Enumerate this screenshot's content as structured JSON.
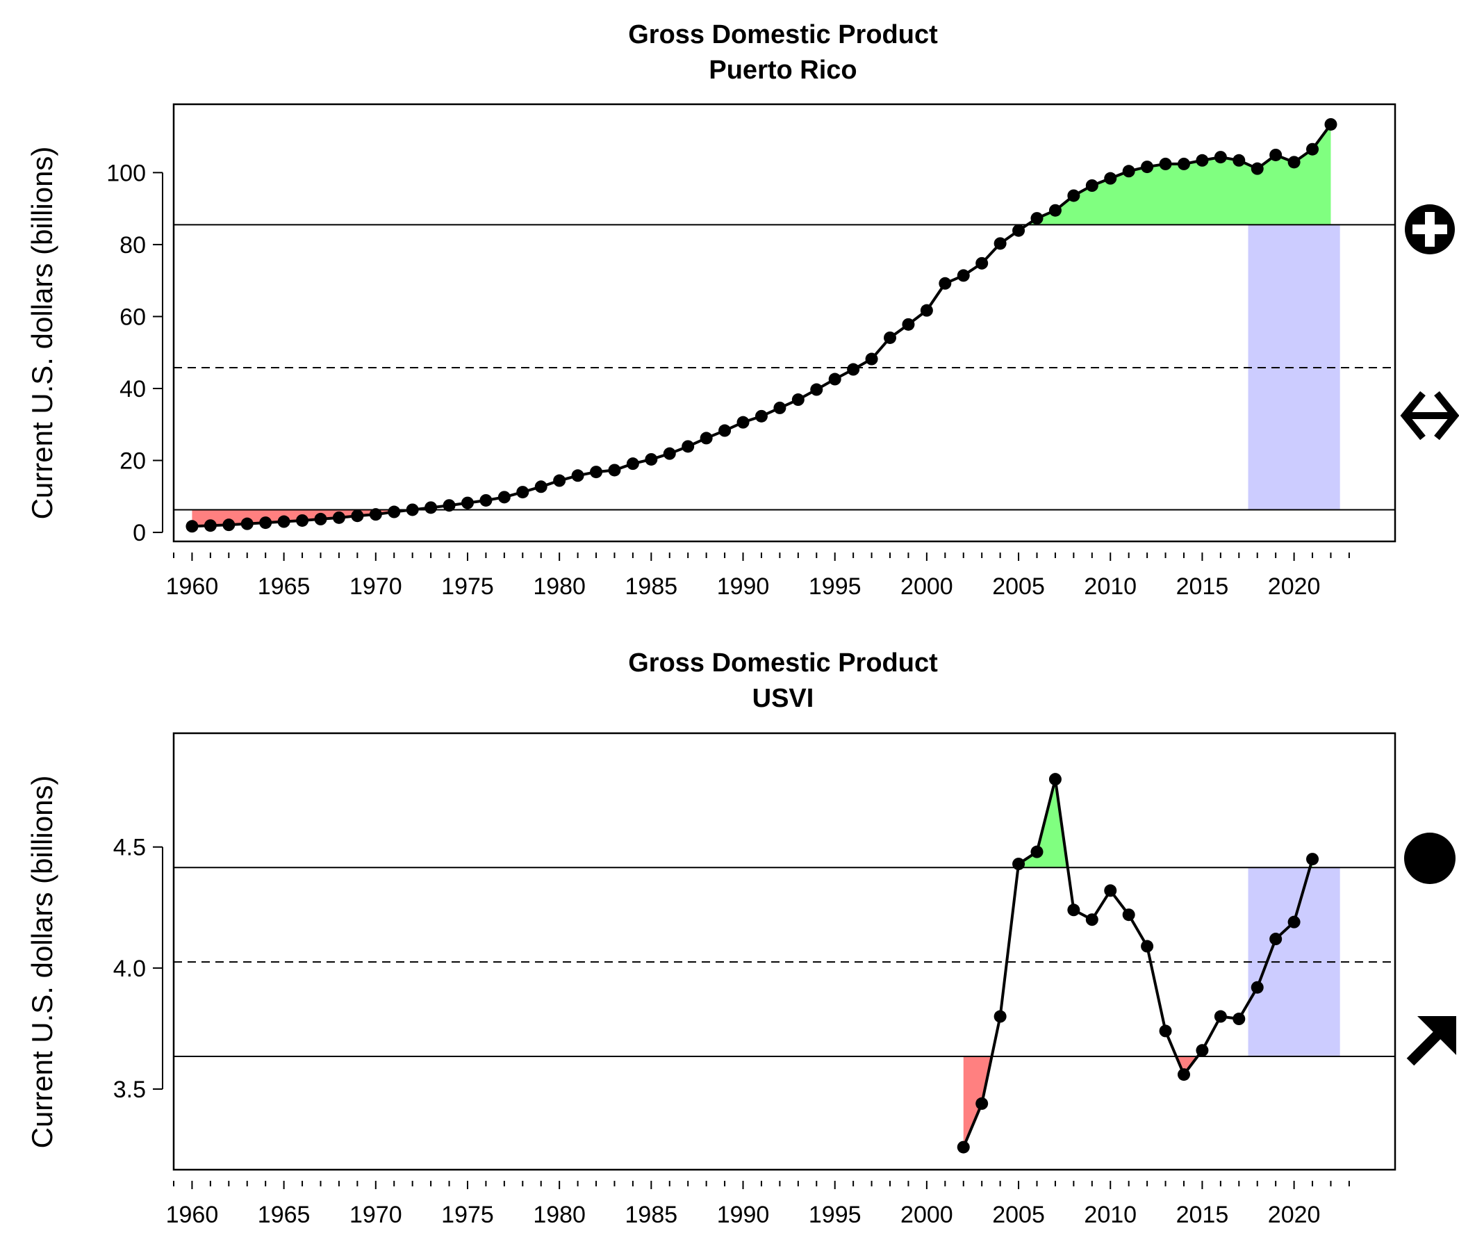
{
  "chart_data": [
    {
      "type": "line",
      "title": "Gross Domestic Product",
      "subtitle": "Puerto Rico",
      "ylabel": "Current U.S. dollars (billions)",
      "xlabel": "",
      "xlim": [
        1959.0,
        2025.5
      ],
      "ylim": [
        -2.5,
        119
      ],
      "x_ticks_labeled": [
        1960,
        1965,
        1970,
        1975,
        1980,
        1985,
        1990,
        1995,
        2000,
        2005,
        2010,
        2015,
        2020
      ],
      "y_ticks": [
        0,
        20,
        40,
        60,
        80,
        100
      ],
      "y_tick_labels": [
        "0",
        "20",
        "40",
        "60",
        "80",
        "100"
      ],
      "mean": 45.8,
      "upper": 85.5,
      "lower": 6.3,
      "recent_window": [
        2017.5,
        2022.5
      ],
      "trend_symbol": "plus-circle-icon",
      "change_symbol": "double-arrow-horizontal-icon",
      "colors": {
        "above": "#80ff80",
        "below": "#ff8080",
        "recent": "#ccccff",
        "line": "#000000"
      },
      "series": [
        {
          "x": [
            1960,
            1961,
            1962,
            1963,
            1964,
            1965,
            1966,
            1967,
            1968,
            1969,
            1970,
            1971,
            1972,
            1973,
            1974,
            1975,
            1976,
            1977,
            1978,
            1979,
            1980,
            1981,
            1982,
            1983,
            1984,
            1985,
            1986,
            1987,
            1988,
            1989,
            1990,
            1991,
            1992,
            1993,
            1994,
            1995,
            1996,
            1997,
            1998,
            1999,
            2000,
            2001,
            2002,
            2003,
            2004,
            2005,
            2006,
            2007,
            2008,
            2009,
            2010,
            2011,
            2012,
            2013,
            2014,
            2015,
            2016,
            2017,
            2018,
            2019,
            2020,
            2021,
            2022
          ],
          "values": [
            1.7,
            1.9,
            2.1,
            2.4,
            2.7,
            3.0,
            3.3,
            3.7,
            4.1,
            4.6,
            5.0,
            5.7,
            6.3,
            6.9,
            7.5,
            8.2,
            8.9,
            9.8,
            11.2,
            12.7,
            14.4,
            15.8,
            16.8,
            17.3,
            19.1,
            20.3,
            21.9,
            23.9,
            26.2,
            28.3,
            30.6,
            32.3,
            34.6,
            36.9,
            39.7,
            42.6,
            45.3,
            48.2,
            54.1,
            57.8,
            61.7,
            69.2,
            71.4,
            74.8,
            80.3,
            83.9,
            87.3,
            89.5,
            93.6,
            96.4,
            98.4,
            100.4,
            101.6,
            102.4,
            102.4,
            103.4,
            104.3,
            103.4,
            101.1,
            104.9,
            102.9,
            106.5,
            113.4
          ]
        }
      ]
    },
    {
      "type": "line",
      "title": "Gross Domestic Product",
      "subtitle": "USVI",
      "ylabel": "Current U.S. dollars (billions)",
      "xlabel": "",
      "xlim": [
        1959.0,
        2025.5
      ],
      "ylim": [
        3.167,
        4.97
      ],
      "x_ticks_labeled": [
        1960,
        1965,
        1970,
        1975,
        1980,
        1985,
        1990,
        1995,
        2000,
        2005,
        2010,
        2015,
        2020
      ],
      "y_ticks": [
        3.5,
        4.0,
        4.5
      ],
      "y_tick_labels": [
        "3.5",
        "4.0",
        "4.5"
      ],
      "mean": 4.025,
      "upper": 4.415,
      "lower": 3.635,
      "recent_window": [
        2017.5,
        2022.5
      ],
      "trend_symbol": "filled-circle-icon",
      "change_symbol": "arrow-up-right-icon",
      "colors": {
        "above": "#80ff80",
        "below": "#ff8080",
        "recent": "#ccccff",
        "line": "#000000"
      },
      "series": [
        {
          "x": [
            2002,
            2003,
            2004,
            2005,
            2006,
            2007,
            2008,
            2009,
            2010,
            2011,
            2012,
            2013,
            2014,
            2015,
            2016,
            2017,
            2018,
            2019,
            2020,
            2021
          ],
          "values": [
            3.26,
            3.44,
            3.8,
            4.43,
            4.48,
            4.78,
            4.24,
            4.2,
            4.32,
            4.22,
            4.09,
            3.74,
            3.56,
            3.66,
            3.8,
            3.79,
            3.92,
            4.12,
            4.19,
            4.45
          ]
        }
      ]
    }
  ]
}
